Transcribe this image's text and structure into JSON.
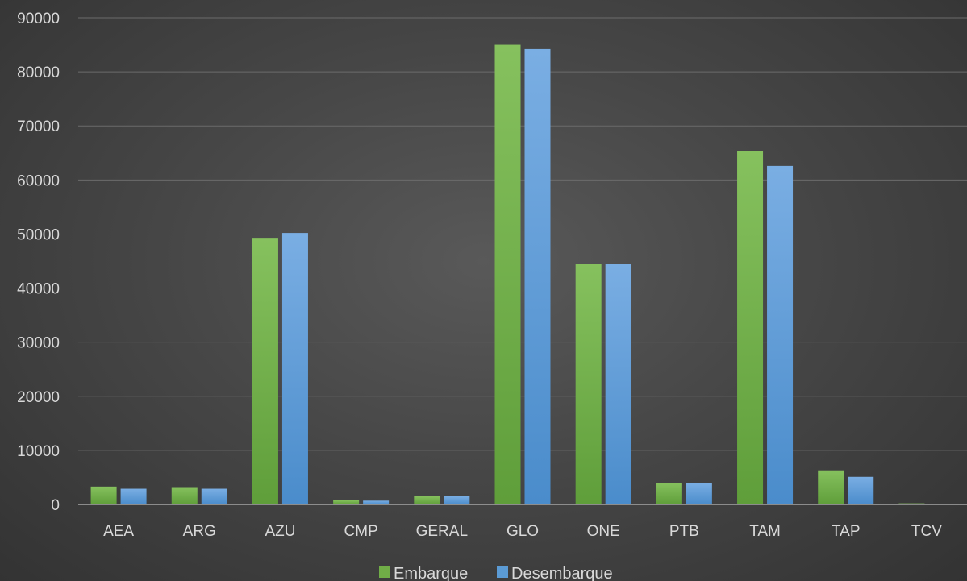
{
  "chart_data": {
    "type": "bar",
    "title": "",
    "xlabel": "",
    "ylabel": "",
    "categories": [
      "AEA",
      "ARG",
      "AZU",
      "CMP",
      "GERAL",
      "GLO",
      "ONE",
      "PTB",
      "TAM",
      "TAP",
      "TCV"
    ],
    "series": [
      {
        "name": "Embarque",
        "color": "#70ad47",
        "values": [
          3300,
          3200,
          49300,
          800,
          1500,
          85000,
          44500,
          4000,
          65400,
          6300,
          200
        ]
      },
      {
        "name": "Desembarque",
        "color": "#5b9bd5",
        "values": [
          2900,
          2900,
          50200,
          700,
          1500,
          84200,
          44500,
          4000,
          62600,
          5100,
          100
        ]
      }
    ],
    "ylim": [
      0,
      90000
    ],
    "yticks": [
      0,
      10000,
      20000,
      30000,
      40000,
      50000,
      60000,
      70000,
      80000,
      90000
    ],
    "grid": true,
    "legend_position": "bottom"
  }
}
